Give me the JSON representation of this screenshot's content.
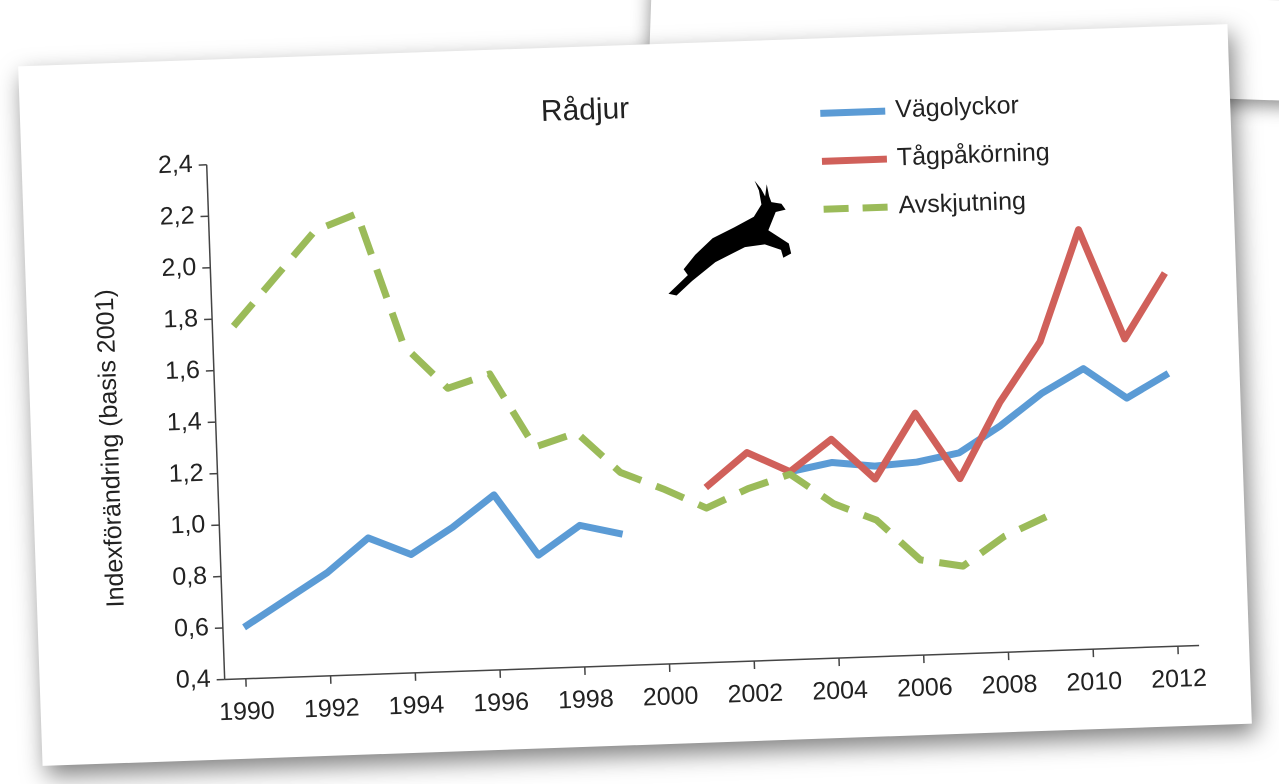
{
  "chart_data": {
    "type": "line",
    "title": "Rådjur",
    "ylabel": "Indexförändring (basis 2001)",
    "x": [
      1990,
      1991,
      1992,
      1993,
      1994,
      1995,
      1996,
      1997,
      1998,
      1999,
      2000,
      2001,
      2002,
      2003,
      2004,
      2005,
      2006,
      2007,
      2008,
      2009,
      2010,
      2011,
      2012
    ],
    "xlim": [
      1989.5,
      2012.5
    ],
    "xticks": [
      1990,
      1992,
      1994,
      1996,
      1998,
      2000,
      2002,
      2004,
      2006,
      2008,
      2010,
      2012
    ],
    "ylim": [
      0.4,
      2.4
    ],
    "yticks": [
      {
        "value": 0.4,
        "label": "0,4"
      },
      {
        "value": 0.6,
        "label": "0,6"
      },
      {
        "value": 0.8,
        "label": "0,8"
      },
      {
        "value": 1.0,
        "label": "1,0"
      },
      {
        "value": 1.2,
        "label": "1,2"
      },
      {
        "value": 1.4,
        "label": "1,4"
      },
      {
        "value": 1.6,
        "label": "1,6"
      },
      {
        "value": 1.8,
        "label": "1,8"
      },
      {
        "value": 2.0,
        "label": "2,0"
      },
      {
        "value": 2.2,
        "label": "2,2"
      },
      {
        "value": 2.4,
        "label": "2,4"
      }
    ],
    "legend": "top-right",
    "series": [
      {
        "name": "Vägolyckor",
        "color": "#5b9bd5",
        "dashed": false,
        "values": [
          0.6,
          0.7,
          0.8,
          0.93,
          0.86,
          0.96,
          1.08,
          0.84,
          0.95,
          0.91,
          null,
          null,
          null,
          1.13,
          1.16,
          1.14,
          1.15,
          1.18,
          1.28,
          1.4,
          1.49,
          1.37,
          1.46
        ]
      },
      {
        "name": "Tågpåkörning",
        "color": "#d0605a",
        "dashed": false,
        "values": [
          null,
          null,
          null,
          null,
          null,
          null,
          null,
          null,
          null,
          null,
          null,
          1.08,
          1.21,
          1.13,
          1.25,
          1.09,
          1.34,
          1.08,
          1.37,
          1.6,
          2.03,
          1.6,
          1.85
        ]
      },
      {
        "name": "Avskjutning",
        "color": "#9bbb59",
        "dashed": true,
        "values": [
          1.77,
          1.95,
          2.13,
          2.19,
          1.67,
          1.5,
          1.55,
          1.26,
          1.31,
          1.15,
          1.08,
          1.0,
          1.07,
          1.12,
          1.0,
          0.93,
          0.77,
          0.74,
          0.85,
          0.92,
          null,
          null,
          null
        ]
      }
    ]
  }
}
